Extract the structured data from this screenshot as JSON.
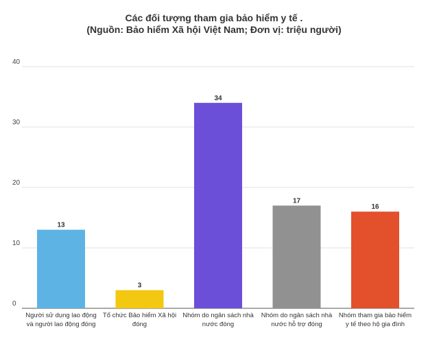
{
  "chart_data": {
    "type": "bar",
    "title": "Các đối tượng tham gia bảo hiểm y tế .",
    "subtitle": "(Nguồn: Bảo hiểm Xã hội Việt Nam; Đơn vị: triệu người)",
    "xlabel": "",
    "ylabel": "",
    "ylim": [
      0,
      40
    ],
    "yticks": [
      0,
      10,
      20,
      30,
      40
    ],
    "grid": true,
    "categories": [
      [
        "Người sử dụng lao động",
        "và người lao động đóng"
      ],
      [
        "Tổ chức Bảo hiểm Xã hội",
        "đóng"
      ],
      [
        "Nhóm do ngân sách nhà",
        "nước đóng"
      ],
      [
        "Nhóm do ngân sách nhà",
        "nước hỗ trợ đóng"
      ],
      [
        "Nhóm tham gia bảo hiểm",
        "y tế theo hộ gia đình"
      ]
    ],
    "values": [
      13,
      3,
      34,
      17,
      16
    ],
    "colors": [
      "#5DB3E4",
      "#F2C811",
      "#6B4FD8",
      "#919191",
      "#E3502C"
    ]
  }
}
